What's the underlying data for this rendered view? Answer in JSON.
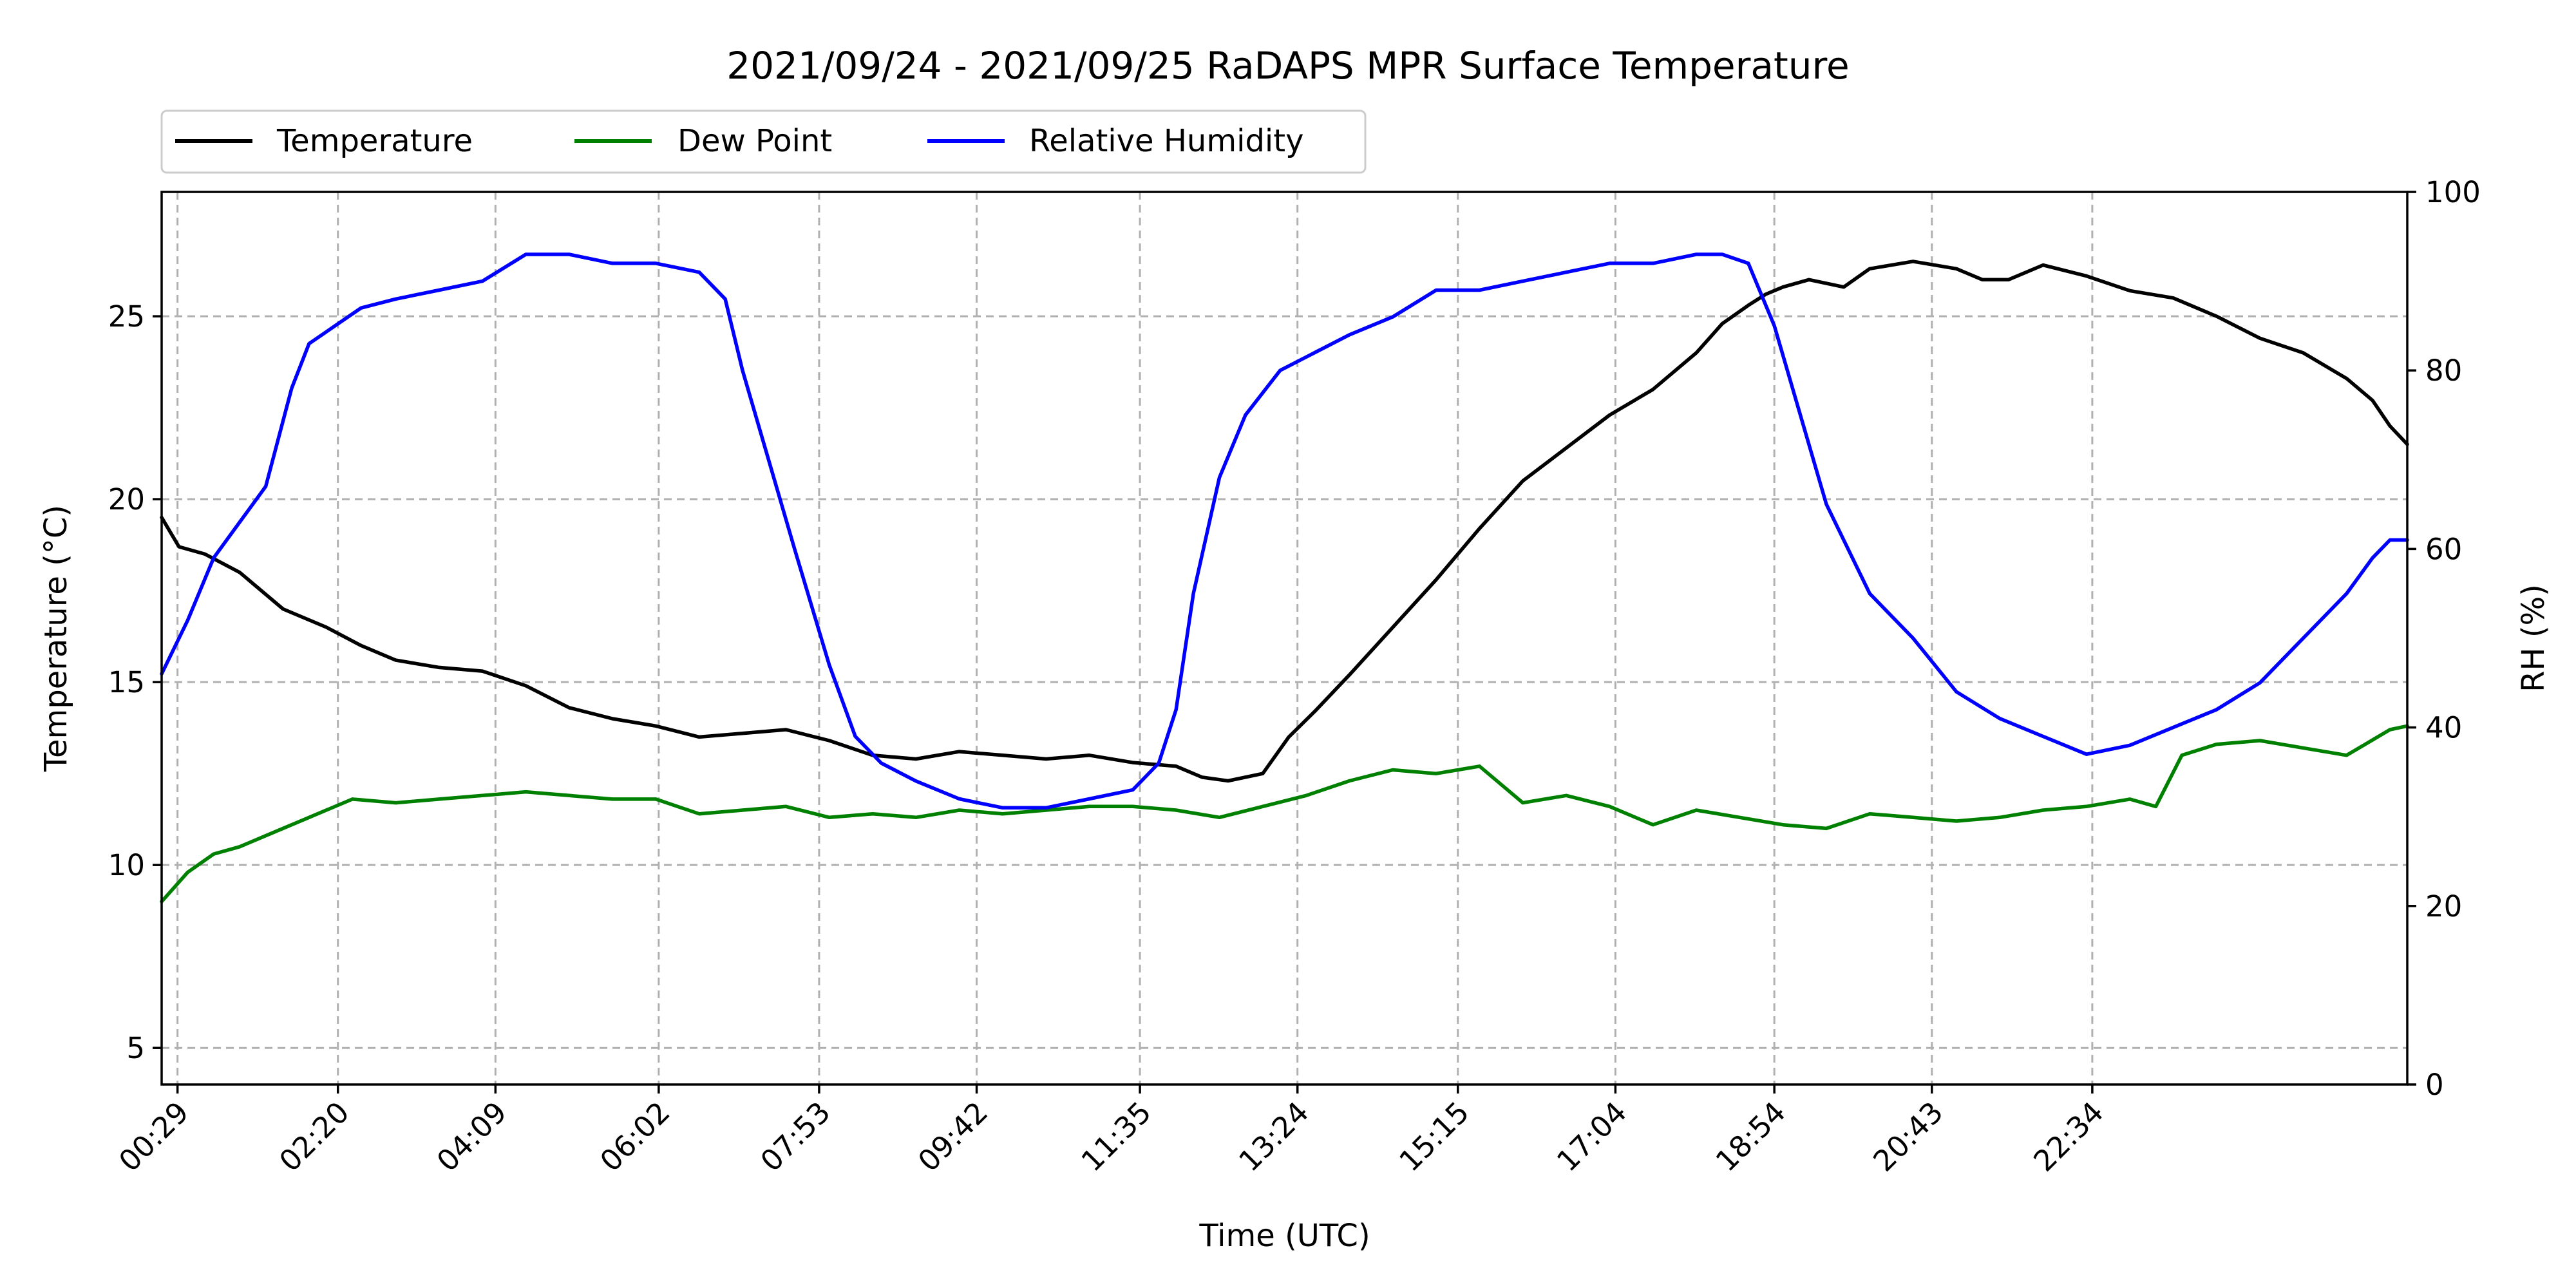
{
  "chart_data": {
    "type": "line",
    "title": "2021/09/24 - 2021/09/25 RaDAPS MPR Surface Temperature",
    "xlabel": "Time (UTC)",
    "ylabel_left": "Temperature ($^\\circ$C)",
    "ylabel_left_display": "Temperature (°C)",
    "ylabel_right": "RH (%)",
    "x_unit": "hours UTC",
    "xlim": [
      0.3,
      26.2
    ],
    "ylim_left": [
      4,
      28.4
    ],
    "ylim_right": [
      0,
      100
    ],
    "x_tick_values": [
      0.483,
      2.333,
      4.15,
      6.033,
      7.883,
      9.7,
      11.583,
      13.4,
      15.25,
      17.067,
      18.9,
      20.717,
      22.567
    ],
    "x_tick_labels": [
      "00:29",
      "02:20",
      "04:09",
      "06:02",
      "07:53",
      "09:42",
      "11:35",
      "13:24",
      "15:15",
      "17:04",
      "18:54",
      "20:43",
      "22:34"
    ],
    "y_left_ticks": [
      5,
      10,
      15,
      20,
      25
    ],
    "y_right_ticks": [
      0,
      20,
      40,
      60,
      80,
      100
    ],
    "grid": true,
    "legend_position": "top-left, above plot",
    "series": [
      {
        "name": "Temperature",
        "color": "#000000",
        "axis": "left",
        "x": [
          0.3,
          0.5,
          0.8,
          1.2,
          1.7,
          2.2,
          2.6,
          3.0,
          3.5,
          4.0,
          4.5,
          5.0,
          5.5,
          6.0,
          6.5,
          7.0,
          7.5,
          8.0,
          8.5,
          9.0,
          9.5,
          10.0,
          10.5,
          11.0,
          11.5,
          12.0,
          12.3,
          12.6,
          13.0,
          13.3,
          13.6,
          14.0,
          14.5,
          15.0,
          15.5,
          16.0,
          16.5,
          17.0,
          17.5,
          18.0,
          18.3,
          18.6,
          18.8,
          19.0,
          19.3,
          19.7,
          20.0,
          20.5,
          21.0,
          21.3,
          21.6,
          22.0,
          22.5,
          23.0,
          23.5,
          24.0,
          24.5,
          25.0,
          25.5,
          25.8,
          26.0,
          26.2
        ],
        "y": [
          19.5,
          18.7,
          18.5,
          18.0,
          17.0,
          16.5,
          16.0,
          15.6,
          15.4,
          15.3,
          14.9,
          14.3,
          14.0,
          13.8,
          13.5,
          13.6,
          13.7,
          13.4,
          13.0,
          12.9,
          13.1,
          13.0,
          12.9,
          13.0,
          12.8,
          12.7,
          12.4,
          12.3,
          12.5,
          13.5,
          14.2,
          15.2,
          16.5,
          17.8,
          19.2,
          20.5,
          21.4,
          22.3,
          23.0,
          24.0,
          24.8,
          25.3,
          25.6,
          25.8,
          26.0,
          25.8,
          26.3,
          26.5,
          26.3,
          26.0,
          26.0,
          26.4,
          26.1,
          25.7,
          25.5,
          25.0,
          24.4,
          24.0,
          23.3,
          22.7,
          22.0,
          21.5
        ]
      },
      {
        "name": "Dew Point",
        "color": "#008000",
        "axis": "left",
        "x": [
          0.3,
          0.6,
          0.9,
          1.2,
          1.5,
          2.0,
          2.5,
          3.0,
          3.5,
          4.0,
          4.5,
          5.0,
          5.5,
          6.0,
          6.5,
          7.0,
          7.5,
          8.0,
          8.5,
          9.0,
          9.5,
          10.0,
          10.5,
          11.0,
          11.5,
          12.0,
          12.5,
          13.0,
          13.5,
          14.0,
          14.5,
          15.0,
          15.5,
          16.0,
          16.5,
          17.0,
          17.5,
          18.0,
          18.5,
          19.0,
          19.5,
          20.0,
          20.5,
          21.0,
          21.5,
          22.0,
          22.5,
          23.0,
          23.3,
          23.6,
          24.0,
          24.5,
          25.0,
          25.5,
          26.0,
          26.2
        ],
        "y": [
          9.0,
          9.8,
          10.3,
          10.5,
          10.8,
          11.3,
          11.8,
          11.7,
          11.8,
          11.9,
          12.0,
          11.9,
          11.8,
          11.8,
          11.4,
          11.5,
          11.6,
          11.3,
          11.4,
          11.3,
          11.5,
          11.4,
          11.5,
          11.6,
          11.6,
          11.5,
          11.3,
          11.6,
          11.9,
          12.3,
          12.6,
          12.5,
          12.7,
          11.7,
          11.9,
          11.6,
          11.1,
          11.5,
          11.3,
          11.1,
          11.0,
          11.4,
          11.3,
          11.2,
          11.3,
          11.5,
          11.6,
          11.8,
          11.6,
          13.0,
          13.3,
          13.4,
          13.2,
          13.0,
          13.7,
          13.8
        ]
      },
      {
        "name": "Relative Humidity",
        "color": "#0000ff",
        "axis": "right",
        "x": [
          0.3,
          0.6,
          0.9,
          1.2,
          1.5,
          1.8,
          2.0,
          2.3,
          2.6,
          3.0,
          3.5,
          4.0,
          4.5,
          5.0,
          5.5,
          6.0,
          6.5,
          6.8,
          7.0,
          7.3,
          7.6,
          8.0,
          8.3,
          8.6,
          9.0,
          9.5,
          10.0,
          10.5,
          11.0,
          11.5,
          11.8,
          12.0,
          12.2,
          12.5,
          12.8,
          13.2,
          13.6,
          14.0,
          14.5,
          15.0,
          15.5,
          16.0,
          16.5,
          17.0,
          17.5,
          18.0,
          18.3,
          18.6,
          18.9,
          19.2,
          19.5,
          20.0,
          20.5,
          21.0,
          21.5,
          22.0,
          22.5,
          23.0,
          23.5,
          24.0,
          24.5,
          25.0,
          25.5,
          25.8,
          26.0,
          26.2
        ],
        "y": [
          46,
          52,
          59,
          63,
          67,
          78,
          83,
          85,
          87,
          88,
          89,
          90,
          93,
          93,
          92,
          92,
          91,
          88,
          80,
          70,
          60,
          47,
          39,
          36,
          34,
          32,
          31,
          31,
          32,
          33,
          36,
          42,
          55,
          68,
          75,
          80,
          82,
          84,
          86,
          89,
          89,
          90,
          91,
          92,
          92,
          93,
          93,
          92,
          85,
          75,
          65,
          55,
          50,
          44,
          41,
          39,
          37,
          38,
          40,
          42,
          45,
          50,
          55,
          59,
          61,
          61
        ]
      }
    ]
  }
}
